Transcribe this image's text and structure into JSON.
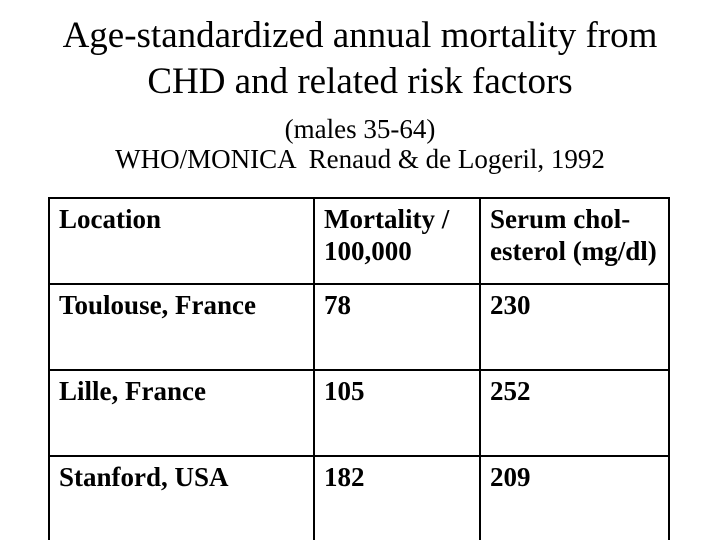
{
  "slide": {
    "title_lines": [
      "Age-standardized annual mortality from",
      "CHD and related risk factors"
    ],
    "subtitle_lines": [
      "(males 35-64)",
      "WHO/MONICA  Renaud & de Logeril, 1992"
    ]
  },
  "table": {
    "columns": [
      {
        "key": "location",
        "label": "Location"
      },
      {
        "key": "mortality",
        "label": "Mortality /\n100,000"
      },
      {
        "key": "cholesterol",
        "label": "Serum chol-\nesterol (mg/dl)"
      }
    ],
    "rows": [
      {
        "location": "Toulouse, France",
        "mortality": "78",
        "cholesterol": "230"
      },
      {
        "location": "Lille, France",
        "mortality": "105",
        "cholesterol": "252"
      },
      {
        "location": "Stanford, USA",
        "mortality": "182",
        "cholesterol": "209"
      }
    ]
  },
  "colors": {
    "background": "#FFFFFF",
    "text": "#000000",
    "table_border": "#000000",
    "highlight_cell_yellow": "#FFFFA6"
  },
  "chart_data": {
    "type": "table",
    "title": "Age-standardized annual mortality from CHD and related risk factors (males 35-64)",
    "source": "WHO/MONICA  Renaud & de Logeril, 1992",
    "columns": [
      "Location",
      "Mortality / 100,000",
      "Serum cholesterol (mg/dl)"
    ],
    "rows": [
      [
        "Toulouse, France",
        78,
        230
      ],
      [
        "Lille, France",
        105,
        252
      ],
      [
        "Stanford, USA",
        182,
        209
      ]
    ]
  }
}
